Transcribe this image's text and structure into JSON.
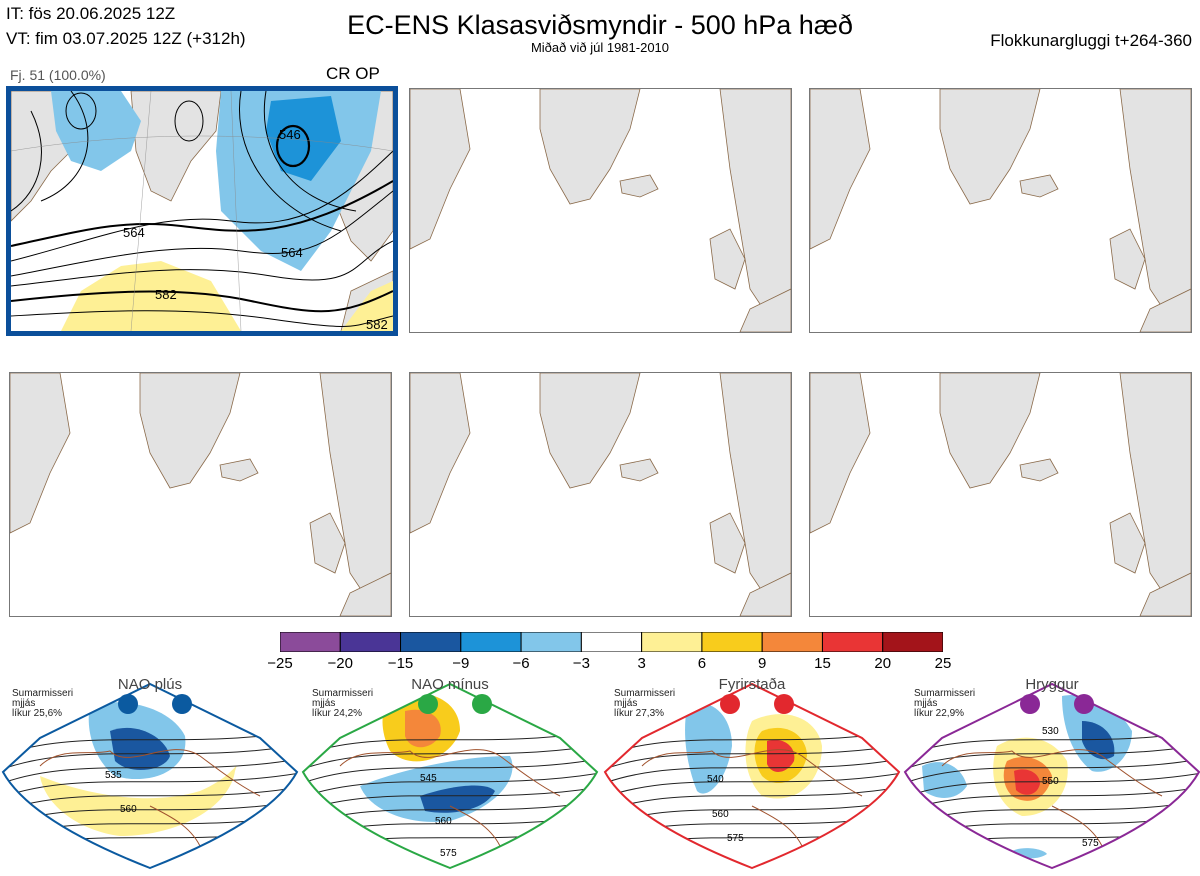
{
  "header": {
    "it": "IT: fös 20.06.2025 12Z",
    "vt": "VT: fim 03.07.2025 12Z  (+312h)",
    "title": "EC-ENS Klasasviðsmyndir - 500 hPa hæð",
    "subtitle": "Miðað við júl 1981-2010",
    "window": "Flokkunargluggi t+264-360"
  },
  "cluster": {
    "members": "Fj. 51 (100.0%)",
    "tag": "CR OP"
  },
  "chart_data": {
    "type": "heatmap",
    "title": "EC-ENS Klasasviðsmyndir - 500 hPa hæð",
    "panels": [
      {
        "id": 1,
        "has_data": true,
        "label": "CR OP",
        "members": 51,
        "percent": 100.0,
        "contour_labels": [
          "546",
          "564",
          "564",
          "582",
          "582"
        ]
      },
      {
        "id": 2,
        "has_data": false
      },
      {
        "id": 3,
        "has_data": false
      },
      {
        "id": 4,
        "has_data": false
      },
      {
        "id": 5,
        "has_data": false
      },
      {
        "id": 6,
        "has_data": false
      }
    ],
    "colorbar": {
      "ticks": [
        "−25",
        "−20",
        "−15",
        "−9",
        "−6",
        "−3",
        "3",
        "6",
        "9",
        "15",
        "20",
        "25"
      ],
      "colors": [
        "#8b4b9a",
        "#4a3596",
        "#1a57a0",
        "#1d93d8",
        "#82c6ea",
        "#ffffff",
        "#fef095",
        "#f8cc1c",
        "#f4873a",
        "#e93535",
        "#a3141a"
      ]
    },
    "regimes": [
      {
        "name": "NAO plús",
        "season": "Sumarmisseri",
        "period": "mjjás",
        "prob": "líkur 25,6%",
        "color": "#0b5aa0",
        "contours": [
          "535",
          "560"
        ]
      },
      {
        "name": "NAO mínus",
        "season": "Sumarmisseri",
        "period": "mjjás",
        "prob": "líkur 24,2%",
        "color": "#2aa845",
        "contours": [
          "545",
          "560",
          "575"
        ]
      },
      {
        "name": "Fyrirstaða",
        "season": "Sumarmisseri",
        "period": "mjjás",
        "prob": "líkur 27,3%",
        "color": "#e2282e",
        "contours": [
          "540",
          "560",
          "575"
        ]
      },
      {
        "name": "Hryggur",
        "season": "Sumarmisseri",
        "period": "mjjás",
        "prob": "líkur 22,9%",
        "color": "#8a2896",
        "contours": [
          "530",
          "550",
          "575"
        ]
      }
    ]
  }
}
